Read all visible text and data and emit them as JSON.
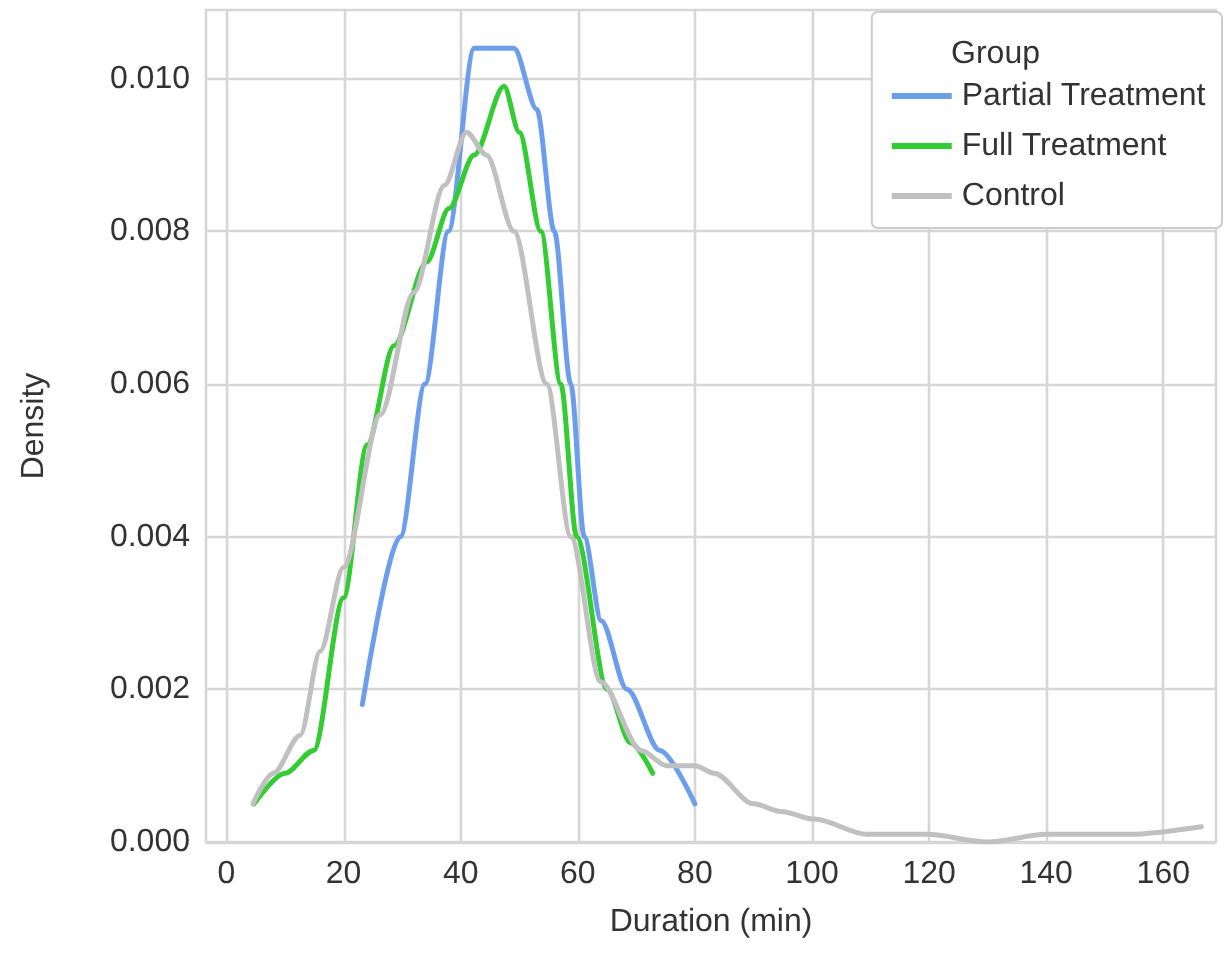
{
  "chart_data": {
    "type": "line",
    "xlabel": "Duration (min)",
    "ylabel": "Density",
    "legend_title": "Group",
    "legend": "top right",
    "grid": true,
    "marker": "none",
    "line_style": "solid",
    "xlim": [
      -3.5,
      169
    ],
    "xticks": [
      0,
      20,
      40,
      60,
      80,
      100,
      120,
      140,
      160
    ],
    "ylim": [
      0,
      0.0109
    ],
    "yticks": [
      {
        "value": 0,
        "label": "0.000"
      },
      {
        "value": 0.002,
        "label": "0.002"
      },
      {
        "value": 0.004,
        "label": "0.004"
      },
      {
        "value": 0.006,
        "label": "0.006"
      },
      {
        "value": 0.008,
        "label": "0.008"
      },
      {
        "value": 0.01,
        "label": "0.010"
      }
    ],
    "series": [
      {
        "name": "Partial Treatment",
        "color": "#6d9eeb",
        "x": [
          23.2,
          29.7,
          33.9,
          37.9,
          42.3,
          45.5,
          49.1,
          53,
          56,
          58.8,
          61.1,
          64,
          68.4,
          74,
          80
        ],
        "values": [
          0.0018,
          0.004,
          0.006,
          0.008,
          0.0104,
          0.0104,
          0.0104,
          0.0096,
          0.008,
          0.006,
          0.004,
          0.0029,
          0.002,
          0.0012,
          0.0005
        ]
      },
      {
        "name": "Full Treatment",
        "color": "#33cc33",
        "x": [
          4.7,
          10,
          14.9,
          20,
          24,
          28.6,
          34.2,
          38,
          42.3,
          47.4,
          50,
          53.7,
          57.1,
          59.8,
          65,
          69,
          72.8
        ],
        "values": [
          0.0005,
          0.0009,
          0.0012,
          0.0032,
          0.0052,
          0.0065,
          0.0076,
          0.0083,
          0.009,
          0.0099,
          0.0093,
          0.008,
          0.006,
          0.004,
          0.002,
          0.0013,
          0.0009
        ]
      },
      {
        "name": "Control",
        "color": "#c0c0c0",
        "x": [
          4.5,
          8,
          12.6,
          16,
          20,
          26.3,
          32,
          37.2,
          41,
          44.4,
          49.1,
          54.7,
          58.8,
          63.9,
          70.8,
          75.2,
          80,
          83.3,
          90,
          94.7,
          100.4,
          109.4,
          119.7,
          130,
          140,
          154,
          166.5
        ],
        "values": [
          0.0005,
          0.0009,
          0.0014,
          0.0025,
          0.0036,
          0.0056,
          0.0072,
          0.0086,
          0.0093,
          0.009,
          0.008,
          0.006,
          0.004,
          0.0021,
          0.0012,
          0.001,
          0.001,
          0.0009,
          0.0005,
          0.0004,
          0.0003,
          0.0001,
          0.0001,
          0,
          0.0001,
          0.0001,
          0.0002
        ]
      }
    ]
  }
}
